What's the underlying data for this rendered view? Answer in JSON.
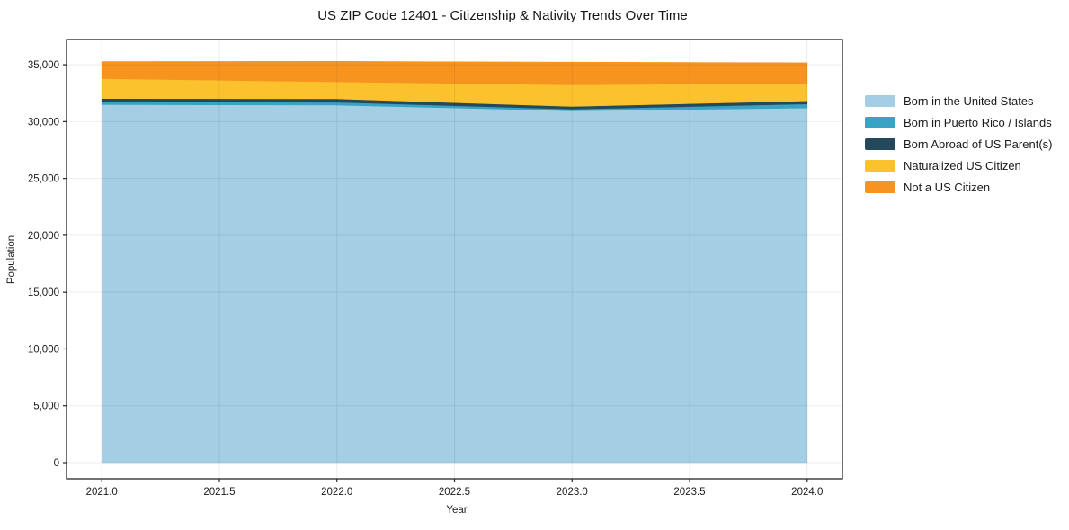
{
  "chart_data": {
    "type": "area",
    "stacked": true,
    "title": "US ZIP Code 12401 - Citizenship & Nativity Trends Over Time",
    "xlabel": "Year",
    "ylabel": "Population",
    "x": [
      2021,
      2022,
      2023,
      2024
    ],
    "series": [
      {
        "name": "Born in the United States",
        "color": "#A3CEE3",
        "values": [
          31500,
          31450,
          30950,
          31200
        ]
      },
      {
        "name": "Born in Puerto Rico / Islands",
        "color": "#38A3C2",
        "values": [
          250,
          250,
          150,
          350
        ]
      },
      {
        "name": "Born Abroad of US Parent(s)",
        "color": "#25495A",
        "values": [
          280,
          300,
          230,
          280
        ]
      },
      {
        "name": "Naturalized US Citizen",
        "color": "#FCC22D",
        "values": [
          1750,
          1500,
          1900,
          1550
        ]
      },
      {
        "name": "Not a US Citizen",
        "color": "#F79420",
        "values": [
          1500,
          1800,
          2000,
          1800
        ]
      }
    ],
    "xlim": [
      2020.85,
      2024.15
    ],
    "ylim": [
      -1422,
      37218
    ],
    "x_ticks": {
      "values": [
        2021.0,
        2021.5,
        2022.0,
        2022.5,
        2023.0,
        2023.5,
        2024.0
      ],
      "labels": [
        "2021.0",
        "2021.5",
        "2022.0",
        "2022.5",
        "2023.0",
        "2023.5",
        "2024.0"
      ]
    },
    "y_ticks": {
      "values": [
        0,
        5000,
        10000,
        15000,
        20000,
        25000,
        30000,
        35000
      ],
      "labels": [
        "0",
        "5,000",
        "10,000",
        "15,000",
        "20,000",
        "25,000",
        "30,000",
        "35,000"
      ]
    },
    "grid": true,
    "legend_position": "right",
    "frame_color": "#262626",
    "tick_label_color": "#1a1a1a",
    "grid_color": "rgba(0,0,0,0.07)"
  }
}
